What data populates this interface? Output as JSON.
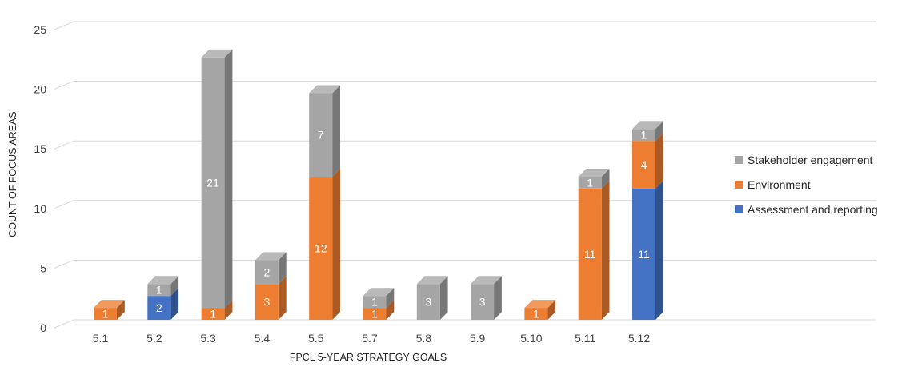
{
  "chart_data": {
    "type": "bar",
    "stacked": true,
    "three_d": true,
    "categories": [
      "5.1",
      "5.2",
      "5.3",
      "5.4",
      "5.5",
      "5.7",
      "5.8",
      "5.9",
      "5.10",
      "5.11",
      "5.12"
    ],
    "series": [
      {
        "name": "Assessment and reporting",
        "color": "#4472C4",
        "values": [
          0,
          2,
          0,
          0,
          0,
          0,
          0,
          0,
          0,
          0,
          11
        ]
      },
      {
        "name": "Environment",
        "color": "#ED7D31",
        "values": [
          1,
          0,
          1,
          3,
          12,
          1,
          0,
          0,
          1,
          11,
          4
        ]
      },
      {
        "name": "Stakeholder engagement",
        "color": "#A5A5A5",
        "values": [
          0,
          1,
          21,
          2,
          7,
          1,
          3,
          3,
          0,
          1,
          1
        ]
      }
    ],
    "xlabel": "FPCL 5-YEAR STRATEGY GOALS",
    "ylabel": "COUNT OF FOCUS AREAS",
    "ylim": [
      0,
      25
    ],
    "yticks": [
      "0",
      "5",
      "10",
      "15",
      "20",
      "25"
    ],
    "grid": true,
    "legend_position": "right",
    "legend_order": [
      "Stakeholder engagement",
      "Environment",
      "Assessment and reporting"
    ]
  }
}
